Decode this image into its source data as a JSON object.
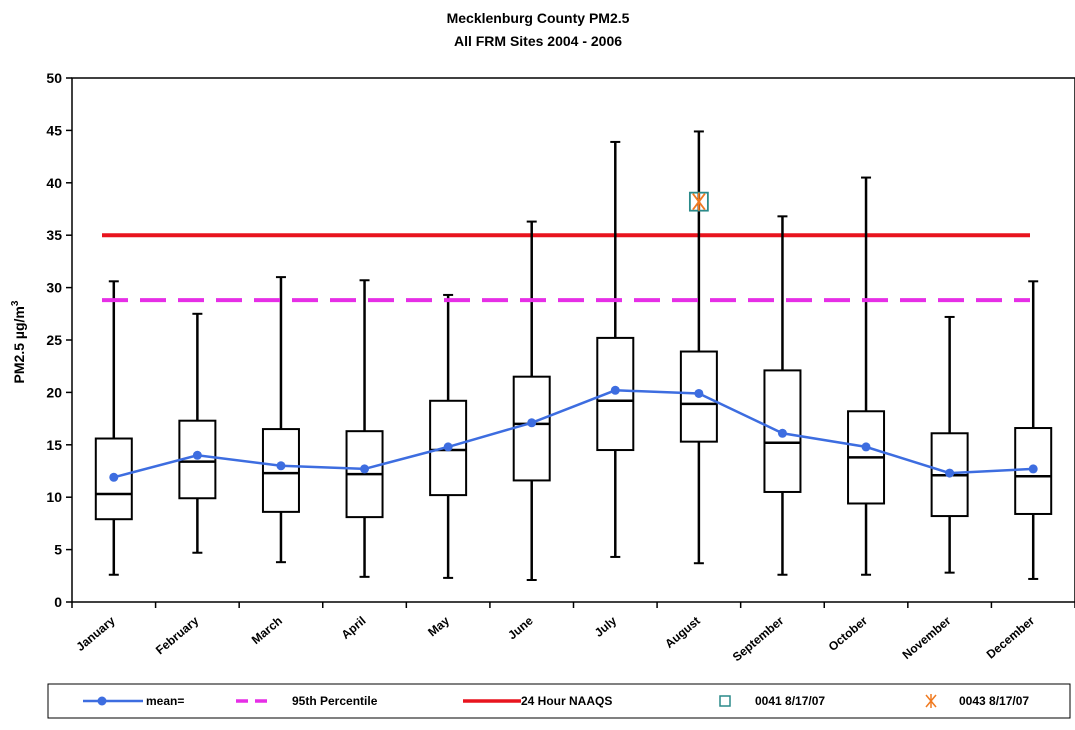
{
  "chart_data": {
    "type": "box",
    "title": "Mecklenburg County PM2.5",
    "subtitle": "All FRM Sites 2004 - 2006",
    "ylabel_main": "PM2.5 µg/m",
    "ylabel_sup": "3",
    "ylim": [
      0,
      50
    ],
    "yticks": [
      "0",
      "5",
      "10",
      "15",
      "20",
      "25",
      "30",
      "35",
      "40",
      "45",
      "50"
    ],
    "categories": [
      "January",
      "February",
      "March",
      "April",
      "May",
      "June",
      "July",
      "August",
      "September",
      "October",
      "November",
      "December"
    ],
    "boxes": [
      {
        "min": 2.6,
        "q1": 7.9,
        "median": 10.3,
        "q3": 15.6,
        "max": 30.6
      },
      {
        "min": 4.7,
        "q1": 9.9,
        "median": 13.4,
        "q3": 17.3,
        "max": 27.5
      },
      {
        "min": 3.8,
        "q1": 8.6,
        "median": 12.3,
        "q3": 16.5,
        "max": 31.0
      },
      {
        "min": 2.4,
        "q1": 8.1,
        "median": 12.2,
        "q3": 16.3,
        "max": 30.7
      },
      {
        "min": 2.3,
        "q1": 10.2,
        "median": 14.5,
        "q3": 19.2,
        "max": 29.3
      },
      {
        "min": 2.1,
        "q1": 11.6,
        "median": 17.0,
        "q3": 21.5,
        "max": 36.3
      },
      {
        "min": 4.3,
        "q1": 14.5,
        "median": 19.2,
        "q3": 25.2,
        "max": 43.9
      },
      {
        "min": 3.7,
        "q1": 15.3,
        "median": 18.9,
        "q3": 23.9,
        "max": 44.9
      },
      {
        "min": 2.6,
        "q1": 10.5,
        "median": 15.2,
        "q3": 22.1,
        "max": 36.8
      },
      {
        "min": 2.6,
        "q1": 9.4,
        "median": 13.8,
        "q3": 18.2,
        "max": 40.5
      },
      {
        "min": 2.8,
        "q1": 8.2,
        "median": 12.1,
        "q3": 16.1,
        "max": 27.2
      },
      {
        "min": 2.2,
        "q1": 8.4,
        "median": 12.0,
        "q3": 16.6,
        "max": 30.6
      }
    ],
    "series": [
      {
        "name": "mean=",
        "values": [
          11.9,
          14.0,
          13.0,
          12.7,
          14.8,
          17.1,
          20.2,
          19.9,
          16.1,
          14.8,
          12.3,
          12.7
        ],
        "color": "#3d6de0"
      }
    ],
    "percentile95": {
      "name": "95th Percentile",
      "value": 28.8,
      "color": "#e62ee6"
    },
    "naaqs": {
      "name": "24 Hour NAAQS",
      "value": 35,
      "color": "#e8141e"
    },
    "markers": [
      {
        "name": "0041 8/17/07",
        "category": "August",
        "value": 38.2,
        "symbol": "square",
        "color": "#2a8a8a"
      },
      {
        "name": "0043 8/17/07",
        "category": "August",
        "value": 38.2,
        "symbol": "asterisk",
        "color": "#f07a20"
      }
    ],
    "legend_position": "bottom"
  }
}
